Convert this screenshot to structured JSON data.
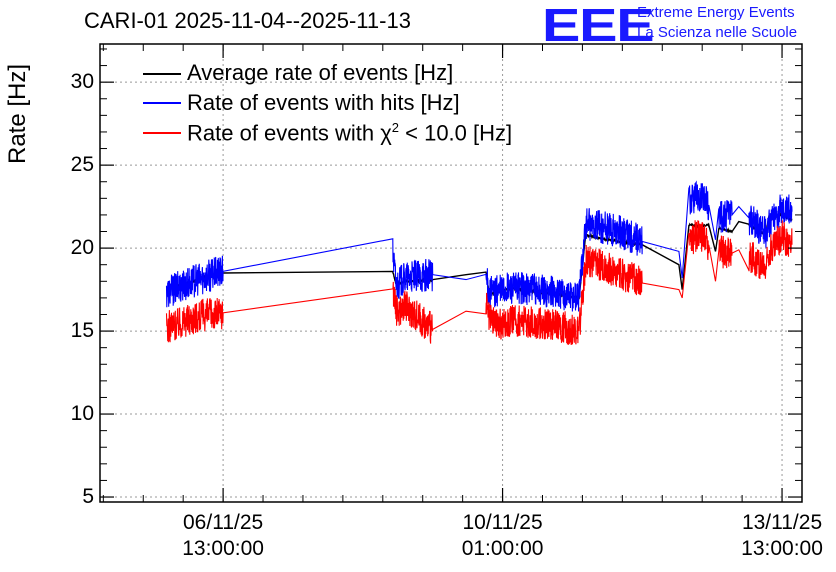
{
  "title": "CARI-01 2025-11-04--2025-11-13",
  "brand": {
    "logo": "EEE",
    "line1": "Extreme Energy Events",
    "line2": "La Scienza nelle Scuole",
    "color": "#1a1aff"
  },
  "chart_data": {
    "type": "line",
    "ylabel": "Rate [Hz]",
    "ylim": [
      4.7,
      32.3
    ],
    "yticks": [
      5,
      10,
      15,
      20,
      25,
      30
    ],
    "xlim_hours": [
      0,
      211
    ],
    "xticks": [
      {
        "hour": 37,
        "date": "06/11/25",
        "time": "13:00:00"
      },
      {
        "hour": 121,
        "date": "10/11/25",
        "time": "01:00:00"
      },
      {
        "hour": 205,
        "date": "13/11/25",
        "time": "13:00:00"
      }
    ],
    "grid": true,
    "legend_position": "top-left",
    "series": [
      {
        "name": "Average rate of events [Hz]",
        "color": "#000000",
        "points": [
          [
            20,
            17.5
          ],
          [
            24,
            17.8
          ],
          [
            28,
            18.0
          ],
          [
            32,
            18.3
          ],
          [
            37,
            18.5
          ],
          [
            88,
            18.6
          ],
          [
            89,
            17.8
          ],
          [
            92,
            18.0
          ],
          [
            100,
            18.1
          ],
          [
            110,
            18.4
          ],
          [
            116,
            18.6
          ],
          [
            117,
            17.2
          ],
          [
            120,
            17.4
          ],
          [
            124,
            17.6
          ],
          [
            130,
            17.4
          ],
          [
            138,
            17.2
          ],
          [
            144,
            17.0
          ],
          [
            146,
            20.8
          ],
          [
            150,
            20.6
          ],
          [
            156,
            20.4
          ],
          [
            163,
            20.2
          ],
          [
            174,
            19.0
          ],
          [
            175,
            17.5
          ],
          [
            177,
            21.4
          ],
          [
            180,
            21.3
          ],
          [
            183,
            21.4
          ],
          [
            185,
            19.8
          ],
          [
            186,
            21.2
          ],
          [
            190,
            21.0
          ],
          [
            192,
            21.6
          ],
          [
            195,
            21.4
          ],
          [
            200,
            20.8
          ],
          [
            201,
            21.8
          ],
          [
            205,
            22.0
          ],
          [
            208,
            21.7
          ]
        ]
      },
      {
        "name": "Rate of events with hits [Hz]",
        "color": "#0000ff",
        "points": [
          [
            20,
            17.3
          ],
          [
            24,
            17.7
          ],
          [
            28,
            18.0
          ],
          [
            32,
            18.3
          ],
          [
            37,
            18.6
          ],
          [
            88,
            19.8
          ],
          [
            89,
            17.8
          ],
          [
            92,
            18.2
          ],
          [
            100,
            18.4
          ],
          [
            110,
            18.1
          ],
          [
            116,
            18.2
          ],
          [
            117,
            17.3
          ],
          [
            120,
            17.4
          ],
          [
            124,
            17.6
          ],
          [
            130,
            17.5
          ],
          [
            138,
            17.3
          ],
          [
            144,
            17.1
          ],
          [
            146,
            21.5
          ],
          [
            150,
            21.3
          ],
          [
            156,
            21.0
          ],
          [
            163,
            20.4
          ],
          [
            174,
            19.8
          ],
          [
            175,
            18.2
          ],
          [
            177,
            22.8
          ],
          [
            180,
            23.2
          ],
          [
            183,
            22.6
          ],
          [
            185,
            20.5
          ],
          [
            186,
            21.8
          ],
          [
            190,
            22.0
          ],
          [
            192,
            22.5
          ],
          [
            195,
            21.8
          ],
          [
            200,
            20.9
          ],
          [
            201,
            21.6
          ],
          [
            205,
            22.4
          ],
          [
            208,
            22.2
          ]
        ]
      },
      {
        "name": "Rate of events with χ2 < 10.0 [Hz]",
        "color": "#ff0000",
        "points": [
          [
            20,
            15.2
          ],
          [
            24,
            15.5
          ],
          [
            28,
            15.8
          ],
          [
            32,
            16.0
          ],
          [
            37,
            16.1
          ],
          [
            88,
            17.8
          ],
          [
            89,
            16.2
          ],
          [
            92,
            16.5
          ],
          [
            100,
            15.1
          ],
          [
            110,
            16.2
          ],
          [
            116,
            16.6
          ],
          [
            117,
            15.7
          ],
          [
            120,
            15.4
          ],
          [
            124,
            15.6
          ],
          [
            130,
            15.5
          ],
          [
            138,
            15.3
          ],
          [
            144,
            15.0
          ],
          [
            146,
            19.2
          ],
          [
            150,
            19.0
          ],
          [
            156,
            18.5
          ],
          [
            163,
            17.9
          ],
          [
            174,
            17.5
          ],
          [
            175,
            17.0
          ],
          [
            177,
            20.5
          ],
          [
            180,
            20.8
          ],
          [
            183,
            20.2
          ],
          [
            185,
            18.0
          ],
          [
            186,
            19.8
          ],
          [
            190,
            19.7
          ],
          [
            192,
            19.9
          ],
          [
            195,
            19.6
          ],
          [
            200,
            18.8
          ],
          [
            201,
            19.8
          ],
          [
            205,
            20.7
          ],
          [
            208,
            20.2
          ]
        ]
      }
    ],
    "legend_label_average": "Average rate of events [Hz]",
    "legend_label_hits": "Rate of events with hits [Hz]",
    "legend_label_chi_prefix": "Rate of events with ",
    "legend_label_chi_symbol": "χ",
    "legend_label_chi_sup": "2",
    "legend_label_chi_suffix": " < 10.0 [Hz]",
    "noisy_segments_hours": [
      [
        20,
        37
      ],
      [
        88,
        100
      ],
      [
        116,
        144
      ],
      [
        146,
        163
      ],
      [
        177,
        183
      ],
      [
        186,
        190
      ],
      [
        195,
        201
      ],
      [
        204,
        208
      ]
    ]
  }
}
